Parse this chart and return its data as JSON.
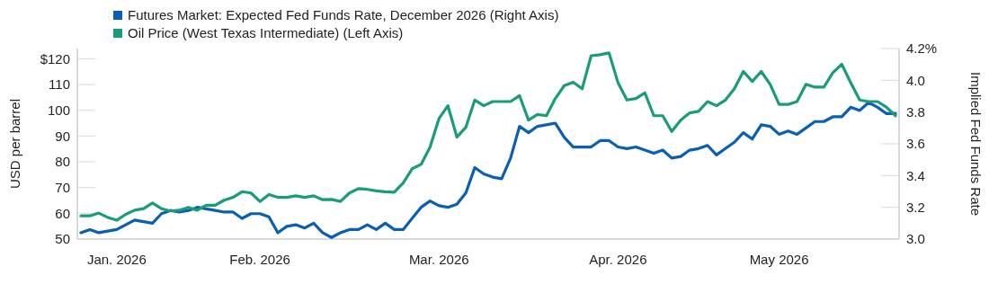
{
  "chart_data": {
    "type": "line",
    "legend": "top left",
    "ylabel": "USD per barrel",
    "y2label": "Implied Fed Funds Rate",
    "categories": [
      null,
      null,
      null,
      null,
      "Jan. 2026",
      null,
      null,
      null,
      null,
      null,
      null,
      null,
      null,
      null,
      null,
      null,
      null,
      null,
      null,
      null,
      "Feb. 2026",
      null,
      null,
      null,
      null,
      null,
      null,
      null,
      null,
      null,
      null,
      null,
      null,
      null,
      null,
      null,
      null,
      null,
      null,
      null,
      "Mar. 2026",
      null,
      null,
      null,
      null,
      null,
      null,
      null,
      null,
      null,
      null,
      null,
      null,
      null,
      null,
      null,
      null,
      null,
      null,
      null,
      "Apr. 2026",
      null,
      null,
      null,
      null,
      null,
      null,
      null,
      null,
      null,
      null,
      null,
      null,
      null,
      null,
      null,
      null,
      null,
      "May 2026",
      null,
      null,
      null,
      null,
      null,
      null,
      null,
      null,
      null,
      null,
      null,
      null,
      null
    ],
    "ylim": [
      50,
      124
    ],
    "yticks": [
      50,
      60,
      70,
      80,
      90,
      100,
      110,
      {
        "value": 120,
        "label": "$120"
      }
    ],
    "y2lim": [
      3.0,
      4.2
    ],
    "y2ticks": [
      {
        "value": 3.0,
        "label": "3.0"
      },
      {
        "value": 3.2,
        "label": "3.2"
      },
      {
        "value": 3.4,
        "label": "3.4"
      },
      {
        "value": 3.6,
        "label": "3.6"
      },
      {
        "value": 3.8,
        "label": "3.8"
      },
      {
        "value": 4.0,
        "label": "4.0"
      },
      {
        "value": 4.2,
        "label": "4.2%"
      }
    ],
    "series": [
      {
        "name": "Futures Market: Expected Fed Funds Rate, December 2026 (Right Axis)",
        "color": "#0a5fb4",
        "axis": "y2",
        "values": [
          3.04,
          3.06,
          3.04,
          3.05,
          3.06,
          3.09,
          3.12,
          3.11,
          3.1,
          3.16,
          3.18,
          3.17,
          3.18,
          3.2,
          3.19,
          3.18,
          3.17,
          3.17,
          3.13,
          3.16,
          3.16,
          3.14,
          3.04,
          3.08,
          3.09,
          3.07,
          3.1,
          3.04,
          3.01,
          3.04,
          3.06,
          3.06,
          3.09,
          3.06,
          3.1,
          3.06,
          3.06,
          3.13,
          3.2,
          3.24,
          3.21,
          3.2,
          3.22,
          3.29,
          3.45,
          3.41,
          3.39,
          3.38,
          3.51,
          3.71,
          3.67,
          3.71,
          3.72,
          3.73,
          3.64,
          3.58,
          3.58,
          3.58,
          3.62,
          3.62,
          3.58,
          3.57,
          3.58,
          3.56,
          3.54,
          3.56,
          3.51,
          3.52,
          3.56,
          3.57,
          3.59,
          3.53,
          3.57,
          3.61,
          3.67,
          3.63,
          3.72,
          3.71,
          3.66,
          3.68,
          3.66,
          3.7,
          3.74,
          3.74,
          3.77,
          3.77,
          3.83,
          3.81,
          3.86,
          3.83,
          3.79,
          3.79
        ]
      },
      {
        "name": "Oil Price (West Texas Intermediate) (Left Axis)",
        "color": "#1a9c7b",
        "values": [
          59.0,
          59.0,
          60.1,
          58.4,
          57.3,
          59.6,
          61.2,
          61.8,
          64.0,
          61.8,
          60.9,
          61.2,
          62.3,
          61.2,
          63.1,
          63.1,
          65.1,
          66.2,
          68.4,
          67.9,
          64.6,
          67.3,
          66.2,
          66.2,
          66.8,
          66.2,
          66.8,
          65.3,
          65.4,
          64.6,
          67.9,
          69.6,
          69.3,
          68.7,
          68.4,
          68.2,
          71.8,
          77.3,
          79.0,
          85.7,
          96.8,
          101.8,
          89.6,
          93.4,
          104.0,
          101.8,
          103.4,
          103.4,
          103.4,
          105.7,
          96.2,
          98.4,
          97.9,
          104.6,
          109.6,
          110.9,
          108.4,
          121.2,
          121.6,
          122.3,
          110.7,
          104.0,
          104.6,
          106.8,
          97.9,
          97.9,
          91.8,
          96.2,
          99.0,
          99.6,
          103.4,
          101.8,
          104.0,
          108.4,
          115.1,
          111.2,
          115.1,
          110.1,
          102.3,
          102.3,
          103.4,
          110.1,
          109.0,
          109.0,
          114.6,
          117.9,
          110.7,
          104.0,
          103.4,
          103.4,
          101.2,
          97.9
        ]
      }
    ]
  }
}
